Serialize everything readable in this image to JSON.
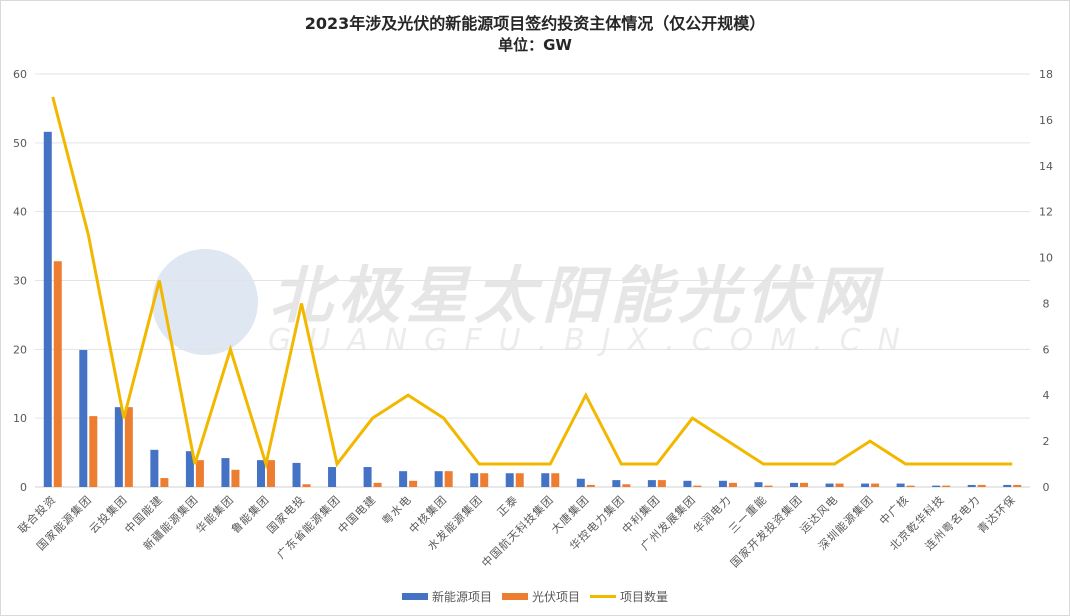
{
  "chart_data": {
    "type": "bar",
    "title": "2023年涉及光伏的新能源项目签约投资主体情况（仅公开规模）",
    "subtitle": "单位：GW",
    "xlabel": "",
    "ylabel": "",
    "ylim": [
      0,
      60
    ],
    "y2lim": [
      0,
      18
    ],
    "yticks": [
      0,
      10,
      20,
      30,
      40,
      50,
      60
    ],
    "y2ticks": [
      0,
      2,
      4,
      6,
      8,
      10,
      12,
      14,
      16,
      18
    ],
    "grid": true,
    "legend_position": "bottom",
    "categories": [
      "联合投资",
      "国家能源集团",
      "云投集团",
      "中国能建",
      "新疆能源集团",
      "华能集团",
      "鲁能集团",
      "国家电投",
      "广东省能源集团",
      "中国电建",
      "粤水电",
      "中核集团",
      "水发能源集团",
      "正泰",
      "中国航天科技集团",
      "大唐集团",
      "华控电力集团",
      "中利集团",
      "广州发展集团",
      "华润电力",
      "三一重能",
      "国家开发投资集团",
      "运达风电",
      "深圳能源集团",
      "中广核",
      "北京乾华科技",
      "连州粤名电力",
      "青达环保"
    ],
    "series": [
      {
        "name": "新能源项目",
        "type": "bar",
        "axis": "left",
        "color": "#4472c4",
        "values": [
          51.6,
          19.9,
          11.6,
          5.4,
          5.2,
          4.2,
          3.9,
          3.5,
          2.9,
          2.9,
          2.3,
          2.3,
          2.0,
          2.0,
          2.0,
          1.2,
          1.0,
          1.0,
          0.9,
          0.9,
          0.7,
          0.6,
          0.5,
          0.5,
          0.5,
          0.2,
          0.3,
          0.3
        ]
      },
      {
        "name": "光伏项目",
        "type": "bar",
        "axis": "left",
        "color": "#ed7d31",
        "values": [
          32.8,
          10.3,
          11.6,
          1.3,
          3.9,
          2.5,
          3.9,
          0.4,
          0,
          0.6,
          0.9,
          2.3,
          2.0,
          2.0,
          2.0,
          0.3,
          0.4,
          1.0,
          0.2,
          0.6,
          0.2,
          0.6,
          0.5,
          0.5,
          0.2,
          0.2,
          0.3,
          0.3
        ]
      },
      {
        "name": "项目数量",
        "type": "line",
        "axis": "right",
        "color": "#f2b800",
        "values": [
          17,
          11,
          3,
          9,
          1,
          6,
          1,
          8,
          1,
          3,
          4,
          3,
          1,
          1,
          1,
          4,
          1,
          1,
          3,
          2,
          1,
          1,
          1,
          2,
          1,
          1,
          1,
          1
        ]
      }
    ]
  },
  "watermark": {
    "cn": "北极星太阳能光伏网",
    "en": "GUANGFU.BJX.COM.CN"
  },
  "legend": [
    {
      "label": "新能源项目",
      "kind": "bar",
      "color": "#4472c4"
    },
    {
      "label": "光伏项目",
      "kind": "bar",
      "color": "#ed7d31"
    },
    {
      "label": "项目数量",
      "kind": "line",
      "color": "#f2b800"
    }
  ]
}
